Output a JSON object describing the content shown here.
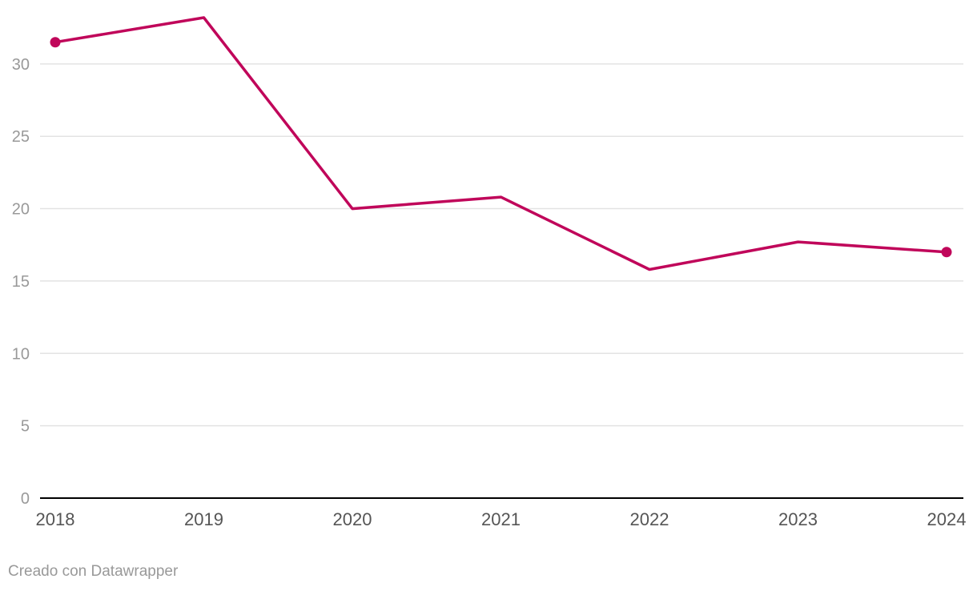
{
  "chart_data": {
    "type": "line",
    "x": [
      "2018",
      "2019",
      "2020",
      "2021",
      "2022",
      "2023",
      "2024"
    ],
    "series": [
      {
        "values": [
          31.5,
          33.2,
          20.0,
          20.8,
          15.8,
          17.7,
          17.0
        ],
        "color": "#c0065a",
        "endpoint_markers": true
      }
    ],
    "ylim": [
      0,
      33.2
    ],
    "yticks": [
      0,
      5,
      10,
      15,
      20,
      25,
      30
    ],
    "grid": true,
    "title": "",
    "xlabel": "",
    "ylabel": ""
  },
  "footer": {
    "credit": "Creado con Datawrapper"
  }
}
